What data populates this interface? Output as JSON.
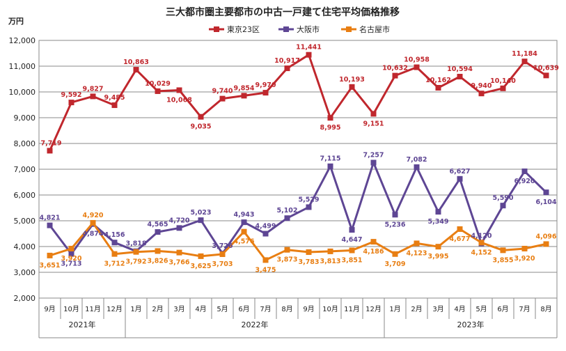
{
  "chart_data": {
    "type": "line",
    "title": "三大都市圏主要都市の中古一戸建て住宅平均価格推移",
    "ylabel": "万円",
    "ylim": [
      2000,
      12000
    ],
    "yticks": [
      "2,000",
      "3,000",
      "4,000",
      "5,000",
      "6,000",
      "7,000",
      "8,000",
      "9,000",
      "10,000",
      "11,000",
      "12,000"
    ],
    "yticks_values": [
      2000,
      3000,
      4000,
      5000,
      6000,
      7000,
      8000,
      9000,
      10000,
      11000,
      12000
    ],
    "categories": [
      "9月",
      "10月",
      "11月",
      "12月",
      "1月",
      "2月",
      "3月",
      "4月",
      "5月",
      "6月",
      "7月",
      "8月",
      "9月",
      "10月",
      "11月",
      "12月",
      "1月",
      "2月",
      "3月",
      "4月",
      "5月",
      "6月",
      "7月",
      "8月"
    ],
    "years": [
      {
        "label": "2021年",
        "start": 0,
        "count": 4
      },
      {
        "label": "2022年",
        "start": 4,
        "count": 12
      },
      {
        "label": "2023年",
        "start": 16,
        "count": 8
      }
    ],
    "series": [
      {
        "name": "東京23区",
        "color": "#c0272d",
        "marker": "square",
        "values": [
          7719,
          9592,
          9827,
          9485,
          10863,
          10029,
          10068,
          9035,
          9740,
          9854,
          9970,
          10917,
          11441,
          8995,
          10193,
          9151,
          10632,
          10958,
          10162,
          10594,
          9940,
          10140,
          11184,
          10639
        ],
        "labels": [
          "7,719",
          "9,592",
          "9,827",
          "9,485",
          "10,863",
          "10,029",
          "10,068",
          "9,035",
          "9,740",
          "9,854",
          "9,970",
          "10,917",
          "11,441",
          "8,995",
          "10,193",
          "9,151",
          "10,632",
          "10,958",
          "10,162",
          "10,594",
          "9,940",
          "10,140",
          "11,184",
          "10,639"
        ]
      },
      {
        "name": "大阪市",
        "color": "#5e4694",
        "marker": "square",
        "values": [
          4821,
          3713,
          4874,
          4156,
          3818,
          4565,
          4720,
          5023,
          3726,
          4943,
          4499,
          5102,
          5529,
          7115,
          4647,
          7257,
          5236,
          7082,
          5349,
          6627,
          4120,
          5590,
          6920,
          6104
        ],
        "labels": [
          "4,821",
          "3,713",
          "4,874",
          "4,156",
          "3,818",
          "4,565",
          "4,720",
          "5,023",
          "3,726",
          "4,943",
          "4,499",
          "5,102",
          "5,529",
          "7,115",
          "4,647",
          "7,257",
          "5,236",
          "7,082",
          "5,349",
          "6,627",
          "4,120",
          "5,590",
          "6,920",
          "6,104"
        ]
      },
      {
        "name": "名古屋市",
        "color": "#e87e12",
        "marker": "square",
        "values": [
          3651,
          3920,
          4920,
          3712,
          3792,
          3826,
          3766,
          3625,
          3703,
          4576,
          3475,
          3873,
          3783,
          3813,
          3851,
          4186,
          3709,
          4123,
          3995,
          4677,
          4152,
          3855,
          3920,
          4096
        ],
        "labels": [
          "3,651",
          "3,920",
          "4,920",
          "3,712",
          "3,792",
          "3,826",
          "3,766",
          "3,625",
          "3,703",
          "4,576",
          "3,475",
          "3,873",
          "3,783",
          "3,813",
          "3,851",
          "4,186",
          "3,709",
          "4,123",
          "3,995",
          "4,677",
          "4,152",
          "3,855",
          "3,920",
          "4,096"
        ]
      }
    ],
    "legend_position": "top-center",
    "grid": "horizontal"
  }
}
